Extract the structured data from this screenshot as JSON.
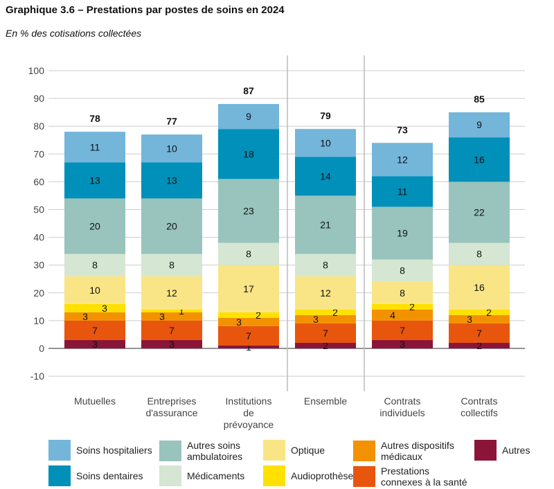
{
  "title": "Graphique 3.6 – Prestations par postes de soins en 2024",
  "subtitle": "En % des cotisations collectées",
  "chart_data": {
    "type": "bar",
    "stacked": true,
    "ylim": [
      -10,
      100
    ],
    "yticks": [
      -10,
      0,
      10,
      20,
      30,
      40,
      50,
      60,
      70,
      80,
      90,
      100
    ],
    "grid": true,
    "legend_position": "bottom",
    "categories": [
      [
        "Mutuelles"
      ],
      [
        "Entreprises",
        "d'assurance"
      ],
      [
        "Institutions",
        "de",
        "prévoyance"
      ],
      [
        "Ensemble"
      ],
      [
        "Contrats",
        "individuels"
      ],
      [
        "Contrats",
        "collectifs"
      ]
    ],
    "totals": [
      78,
      77,
      87,
      79,
      73,
      85
    ],
    "series": [
      {
        "name": "Autres",
        "color": "#8a1538",
        "values": [
          3,
          3,
          1,
          2,
          3,
          2
        ]
      },
      {
        "name": "Prestations connexes à la santé",
        "color": "#e8550d",
        "values": [
          7,
          7,
          7,
          7,
          7,
          7
        ]
      },
      {
        "name": "Autres dispositifs médicaux",
        "color": "#f39200",
        "values": [
          3,
          3,
          3,
          3,
          4,
          3
        ]
      },
      {
        "name": "Audioprothèses",
        "color": "#ffe100",
        "values": [
          3,
          1,
          2,
          2,
          2,
          2
        ]
      },
      {
        "name": "Optique",
        "color": "#f9e585",
        "values": [
          10,
          12,
          17,
          12,
          8,
          16
        ]
      },
      {
        "name": "Médicaments",
        "color": "#d5e6d3",
        "values": [
          8,
          8,
          8,
          8,
          8,
          8
        ]
      },
      {
        "name": "Autres soins ambulatoires",
        "color": "#98c4bd",
        "values": [
          20,
          20,
          23,
          21,
          19,
          22
        ]
      },
      {
        "name": "Soins dentaires",
        "color": "#0090b9",
        "values": [
          13,
          13,
          18,
          14,
          11,
          16
        ]
      },
      {
        "name": "Soins hospitaliers",
        "color": "#74b5da",
        "values": [
          11,
          10,
          9,
          10,
          12,
          9
        ]
      }
    ]
  },
  "legend": [
    {
      "label": "Soins hospitaliers",
      "color": "#74b5da"
    },
    {
      "label": "Autres soins ambulatoires",
      "color": "#98c4bd"
    },
    {
      "label": "Optique",
      "color": "#f9e585"
    },
    {
      "label": "Autres dispositifs médicaux",
      "color": "#f39200"
    },
    {
      "label": "Autres",
      "color": "#8a1538"
    },
    {
      "label": "Soins dentaires",
      "color": "#0090b9"
    },
    {
      "label": "Médicaments",
      "color": "#d5e6d3"
    },
    {
      "label": "Audioprothèses",
      "color": "#ffe100"
    },
    {
      "label": "Prestations connexes à la santé",
      "color": "#e8550d"
    }
  ]
}
